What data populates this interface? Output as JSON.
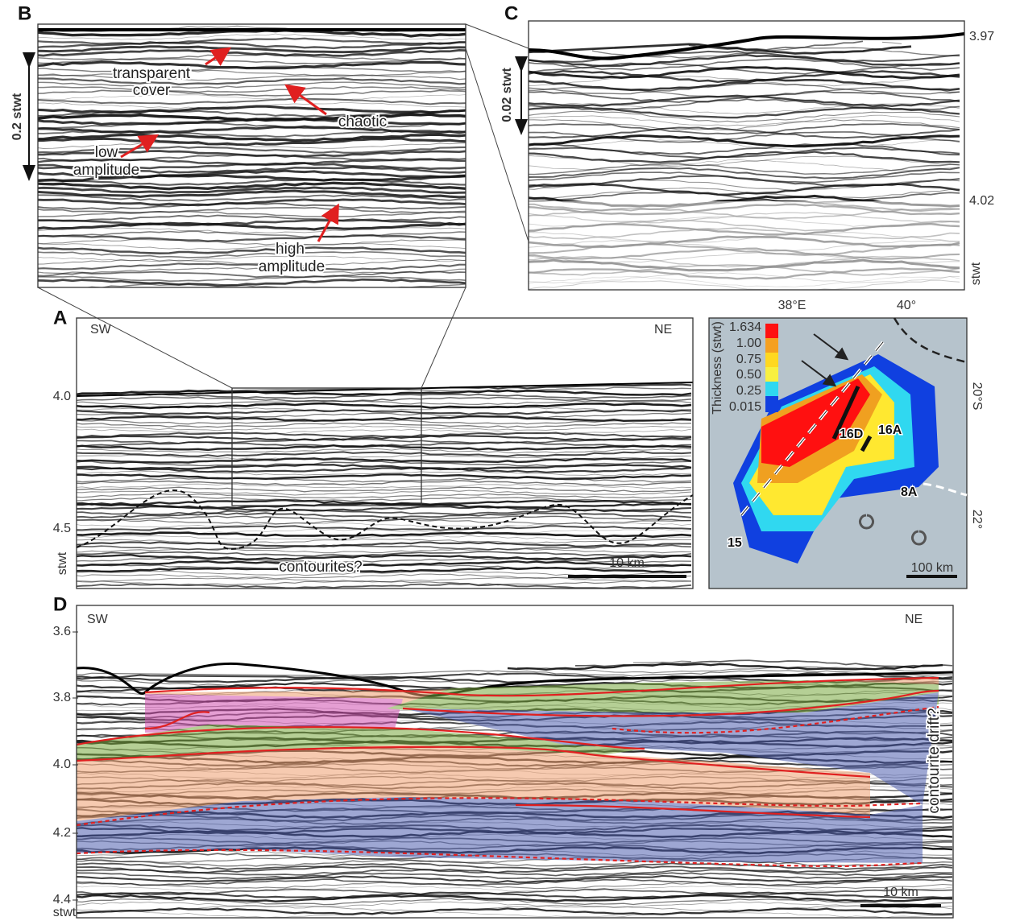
{
  "panel_b": {
    "label": "B",
    "scale": "0.2 stwt",
    "annotations": [
      "transparent",
      "cover",
      "chaotic",
      "low",
      "amplitude",
      "high",
      "amplitude"
    ]
  },
  "panel_c": {
    "label": "C",
    "scale": "0.02 stwt",
    "ticks": [
      "3.97",
      "4.02"
    ],
    "unit": "stwt"
  },
  "panel_a": {
    "label": "A",
    "left": "SW",
    "right": "NE",
    "ticks": [
      "4.0",
      "4.5"
    ],
    "unit": "stwt",
    "annotation": "contourites?",
    "scale_bar": "10 km"
  },
  "map": {
    "lon_ticks": [
      "38°E",
      "40°"
    ],
    "lat_ticks": [
      "20°S",
      "22°"
    ],
    "legend_title": "Thickness (stwt)",
    "legend_values": [
      "1.634",
      "1.00",
      "0.75",
      "0.50",
      "0.25",
      "0.015"
    ],
    "sites": [
      "16D",
      "16A",
      "8A",
      "15"
    ],
    "scale_bar": "100 km"
  },
  "panel_d": {
    "label": "D",
    "left": "SW",
    "right": "NE",
    "ticks": [
      "3.6",
      "3.8",
      "4.0",
      "4.2",
      "4.4"
    ],
    "unit": "stwt",
    "annotation": "contourite drift?",
    "scale_bar": "10 km"
  }
}
